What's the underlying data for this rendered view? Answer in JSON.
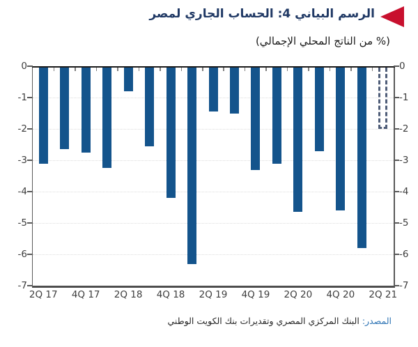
{
  "header": {
    "title": "الرسم البياني 4: الحساب الجاري لمصر",
    "subtitle": "(% من الناتج المحلي الإجمالي)",
    "accent_color": "#C8102E",
    "title_color": "#1F3864"
  },
  "chart_data": {
    "type": "bar",
    "title": "الرسم البياني 4: الحساب الجاري لمصر",
    "subtitle": "(% من الناتج المحلي الإجمالي)",
    "values": [
      -3.1,
      -2.65,
      -2.75,
      -3.25,
      -0.8,
      -2.55,
      -4.2,
      -6.3,
      -1.45,
      -1.5,
      -3.3,
      -3.1,
      -4.65,
      -2.7,
      -4.6,
      -5.8,
      -2.0
    ],
    "dashed_indices": [
      16
    ],
    "x_tick_labels": [
      "2Q 17",
      "4Q 17",
      "2Q 18",
      "4Q 18",
      "2Q 19",
      "4Q 19",
      "2Q 20",
      "4Q 20",
      "2Q 21"
    ],
    "x_tick_positions": [
      0,
      2,
      4,
      6,
      8,
      10,
      12,
      14,
      16
    ],
    "y_ticks": [
      0,
      -1,
      -2,
      -3,
      -4,
      -5,
      -6,
      -7
    ],
    "ylim": [
      -7,
      0
    ],
    "y_axis_both_sides": true,
    "grid": true,
    "legend": false,
    "bar_color": "#14548C",
    "dashed_bar_color": "#4F5D78"
  },
  "footer": {
    "source_label": "المصدر:",
    "source_text": "البنك المركزي المصري وتقديرات بنك الكويت الوطني",
    "source_label_color": "#2E74B5"
  }
}
